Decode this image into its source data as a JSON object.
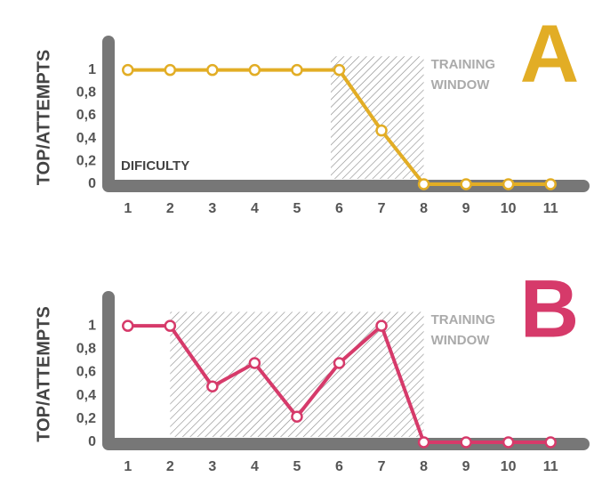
{
  "chart_data": [
    {
      "type": "line",
      "label": "A",
      "y_label": "TOP/ATTEMPTS",
      "x_label": "DIFICULTY",
      "annotation": "TRAINING WINDOW",
      "training_window": [
        5.8,
        8
      ],
      "x": [
        1,
        2,
        3,
        4,
        5,
        6,
        7,
        8,
        9,
        10,
        11
      ],
      "series": [
        {
          "color": "#e2ad25",
          "values": [
            1,
            1,
            1,
            1,
            1,
            1,
            0.47,
            0,
            0,
            0,
            0
          ]
        }
      ],
      "xlim": [
        0.5,
        11.9
      ],
      "xticks": [
        1,
        2,
        3,
        4,
        5,
        6,
        7,
        8,
        9,
        10,
        11
      ],
      "ylim": [
        0,
        1.2
      ],
      "yticks": [
        {
          "value": 1,
          "label": "1"
        },
        {
          "value": 0.8,
          "label": "0,8"
        },
        {
          "value": 0.6,
          "label": "0,6"
        },
        {
          "value": 0.4,
          "label": "0,4"
        },
        {
          "value": 0.2,
          "label": "0,2"
        },
        {
          "value": 0,
          "label": "0"
        }
      ]
    },
    {
      "type": "line",
      "label": "B",
      "y_label": "TOP/ATTEMPTS",
      "annotation": "TRAINING WINDOW",
      "training_window": [
        2,
        8
      ],
      "x": [
        1,
        2,
        3,
        4,
        5,
        6,
        7,
        8,
        9,
        10,
        11
      ],
      "series": [
        {
          "color": "#d63a6a",
          "values": [
            1,
            1,
            0.48,
            0.68,
            0.22,
            0.68,
            1,
            0,
            0,
            0,
            0
          ]
        }
      ],
      "xlim": [
        0.5,
        11.9
      ],
      "xticks": [
        1,
        2,
        3,
        4,
        5,
        6,
        7,
        8,
        9,
        10,
        11
      ],
      "ylim": [
        0,
        1.2
      ],
      "yticks": [
        {
          "value": 1,
          "label": "1"
        },
        {
          "value": 0.8,
          "label": "0,8"
        },
        {
          "value": 0.6,
          "label": "0,6"
        },
        {
          "value": 0.4,
          "label": "0,4"
        },
        {
          "value": 0.2,
          "label": "0,2"
        },
        {
          "value": 0,
          "label": "0"
        }
      ]
    }
  ]
}
